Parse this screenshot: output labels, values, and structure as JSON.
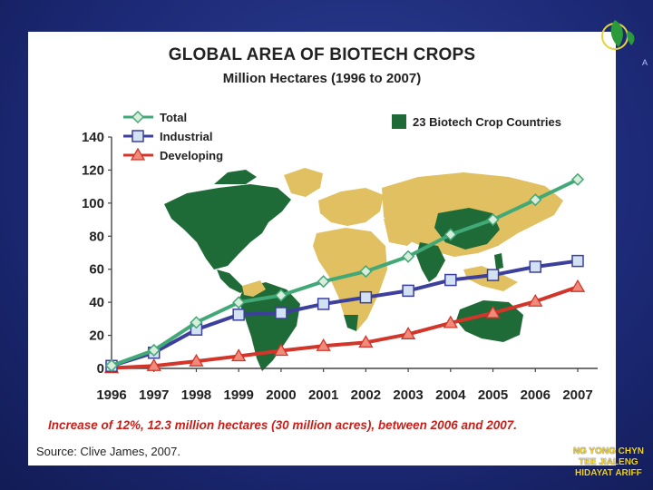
{
  "slide": {
    "title": "GLOBAL AREA OF BIOTECH CROPS",
    "subtitle": "Million Hectares (1996 to 2007)",
    "footnote": "Increase of 12%, 12.3 million hectares (30 million acres), between 2006 and 2007.",
    "source": "Source: Clive James, 2007.",
    "authors": [
      "NG YONG CHYN",
      "TEE JIALENG",
      "HIDAYAT ARIFF"
    ],
    "logo_text": "A"
  },
  "colors": {
    "total": "#43a877",
    "industrial": "#3c3f9c",
    "developing": "#d2352a",
    "map_highlight": "#1f6b38",
    "map_other": "#e0c060",
    "author_text": "#f1d32a"
  },
  "chart_data": {
    "type": "line",
    "title": "GLOBAL AREA OF BIOTECH CROPS",
    "subtitle": "Million Hectares (1996 to 2007)",
    "xlabel": "",
    "ylabel": "",
    "categories": [
      "1996",
      "1997",
      "1998",
      "1999",
      "2000",
      "2001",
      "2002",
      "2003",
      "2004",
      "2005",
      "2006",
      "2007"
    ],
    "ylim": [
      0,
      140
    ],
    "yticks": [
      "0",
      "20",
      "40",
      "60",
      "80",
      "100",
      "120",
      "140"
    ],
    "series": [
      {
        "name": "Total",
        "marker": "diamond",
        "values": [
          1.7,
          11,
          27.8,
          39.9,
          44.2,
          52.6,
          58.7,
          67.7,
          81,
          90,
          102,
          114.3
        ]
      },
      {
        "name": "Industrial",
        "marker": "square",
        "values": [
          1.5,
          9.5,
          23.5,
          32.5,
          33.5,
          39,
          43,
          47,
          53.5,
          56.5,
          61.5,
          65
        ]
      },
      {
        "name": "Developing",
        "marker": "triangle",
        "values": [
          0.2,
          1.5,
          4.3,
          7.4,
          10.7,
          13.6,
          15.7,
          20.7,
          27.5,
          33.5,
          40.5,
          49.3
        ]
      }
    ],
    "legend_position": "top-left",
    "map_legend": "23 Biotech Crop Countries",
    "grid": false
  }
}
